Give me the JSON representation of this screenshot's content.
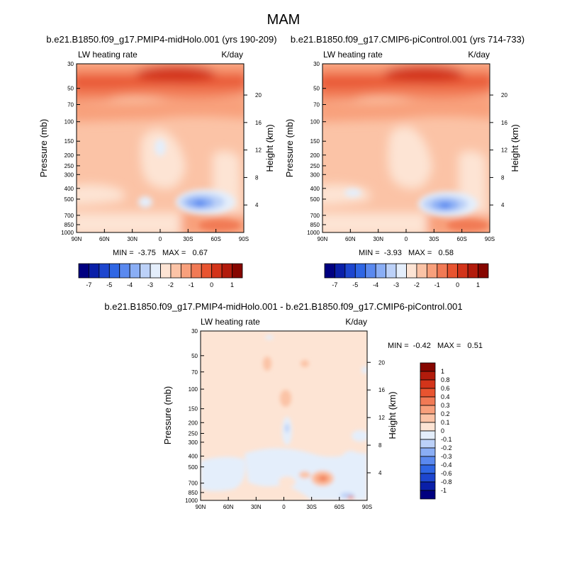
{
  "title": "MAM",
  "chart_data": [
    {
      "type": "heatmap",
      "panel": "left",
      "title": "b.e21.B1850.f09_g17.PMIP4-midHolo.001 (yrs 190-209)",
      "variable_label": "LW heating rate",
      "units_label": "K/day",
      "ylabel": "Pressure (mb)",
      "y2label": "Height (km)",
      "xticks": [
        "90N",
        "60N",
        "30N",
        "0",
        "30S",
        "60S",
        "90S"
      ],
      "yticks": [
        "30",
        "50",
        "70",
        "100",
        "150",
        "200",
        "250",
        "300",
        "400",
        "500",
        "700",
        "850",
        "1000"
      ],
      "y2ticks": [
        "20",
        "16",
        "12",
        "8",
        "4"
      ],
      "stats": "MIN =  -3.75   MAX =   0.67",
      "min": -3.75,
      "max": 0.67
    },
    {
      "type": "heatmap",
      "panel": "right",
      "title": "b.e21.B1850.f09_g17.CMIP6-piControl.001 (yrs 714-733)",
      "variable_label": "LW heating rate",
      "units_label": "K/day",
      "ylabel": "Pressure (mb)",
      "y2label": "Height (km)",
      "xticks": [
        "90N",
        "60N",
        "30N",
        "0",
        "30S",
        "60S",
        "90S"
      ],
      "yticks": [
        "30",
        "50",
        "70",
        "100",
        "150",
        "200",
        "250",
        "300",
        "400",
        "500",
        "700",
        "850",
        "1000"
      ],
      "y2ticks": [
        "20",
        "16",
        "12",
        "8",
        "4"
      ],
      "stats": "MIN =  -3.93   MAX =   0.58",
      "min": -3.93,
      "max": 0.58
    },
    {
      "type": "heatmap",
      "panel": "difference",
      "title": "b.e21.B1850.f09_g17.PMIP4-midHolo.001 - b.e21.B1850.f09_g17.CMIP6-piControl.001",
      "variable_label": "LW heating rate",
      "units_label": "K/day",
      "ylabel": "Pressure (mb)",
      "y2label": "Height (km)",
      "xticks": [
        "90N",
        "60N",
        "30N",
        "0",
        "30S",
        "60S",
        "90S"
      ],
      "yticks": [
        "30",
        "50",
        "70",
        "100",
        "150",
        "200",
        "250",
        "300",
        "400",
        "500",
        "700",
        "850",
        "1000"
      ],
      "y2ticks": [
        "20",
        "16",
        "12",
        "8",
        "4"
      ],
      "stats": "MIN =  -0.42   MAX =   0.51",
      "min": -0.42,
      "max": 0.51
    }
  ],
  "colorbar_top": {
    "colors": [
      "#000080",
      "#0a1fa8",
      "#1d46cf",
      "#2f66e4",
      "#5a89ef",
      "#8aaef5",
      "#bcd1f8",
      "#e4eefb",
      "#fde4d4",
      "#fbc3a6",
      "#f8a07c",
      "#f17a55",
      "#e85430",
      "#d3341a",
      "#b21b0c",
      "#860600"
    ],
    "labels": [
      "-7",
      "-5",
      "-4",
      "-3",
      "-2",
      "-1",
      "0",
      "1"
    ]
  },
  "colorbar_diff": {
    "colors": [
      "#000080",
      "#0a1fa8",
      "#1d46cf",
      "#2f66e4",
      "#5a89ef",
      "#8aaef5",
      "#bcd1f8",
      "#e4eefb",
      "#fde4d4",
      "#fbc3a6",
      "#f8a07c",
      "#f17a55",
      "#e85430",
      "#d3341a",
      "#b21b0c",
      "#860600"
    ],
    "labels": [
      "1",
      "0.8",
      "0.6",
      "0.4",
      "0.3",
      "0.2",
      "0.1",
      "0",
      "-0.1",
      "-0.2",
      "-0.3",
      "-0.4",
      "-0.6",
      "-0.8",
      "-1"
    ]
  }
}
